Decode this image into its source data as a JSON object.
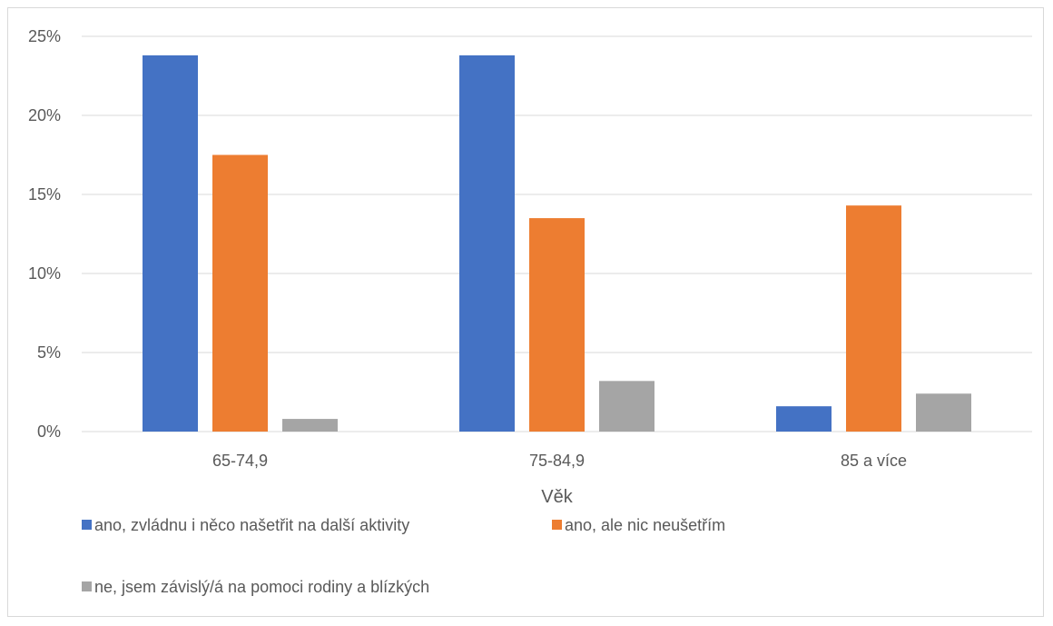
{
  "chart_data": {
    "type": "bar",
    "title": "",
    "xlabel": "Věk",
    "ylabel": "",
    "categories": [
      "65-74,9",
      "75-84,9",
      "85 a více"
    ],
    "series": [
      {
        "name": "ano, zvládnu i něco našetřit na další aktivity",
        "color": "#4472c4",
        "values": [
          23.8,
          23.8,
          1.6
        ]
      },
      {
        "name": "ano, ale nic neušetřím",
        "color": "#ed7d31",
        "values": [
          17.5,
          13.5,
          14.3
        ]
      },
      {
        "name": "ne, jsem závislý/á na pomoci rodiny a blízkých",
        "color": "#a5a5a5",
        "values": [
          0.8,
          3.2,
          2.4
        ]
      }
    ],
    "ylim": [
      0,
      25
    ],
    "yticks": [
      0,
      5,
      10,
      15,
      20,
      25
    ],
    "ytick_labels": [
      "0%",
      "5%",
      "10%",
      "15%",
      "20%",
      "25%"
    ],
    "grid": true,
    "legend_position": "bottom-left",
    "gridline_color": "#d9d9d9"
  }
}
